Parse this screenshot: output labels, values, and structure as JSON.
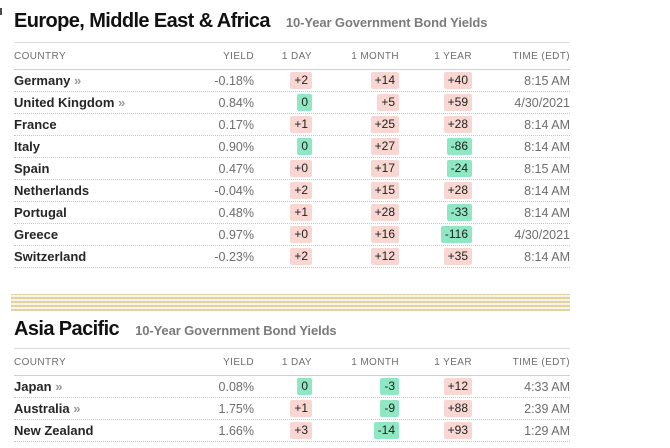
{
  "colors": {
    "badge_red_bg": "#f8d7d3",
    "badge_green_bg": "#8fe7c4",
    "badge_text": "#1f1f1f",
    "band_tan": "#e5d9af"
  },
  "link_glyph": "»",
  "sections": [
    {
      "title": "Europe, Middle East & Africa",
      "subtitle": "10-Year Government Bond Yields",
      "columns": [
        "COUNTRY",
        "YIELD",
        "1 DAY",
        "1 MONTH",
        "1 YEAR",
        "TIME (EDT)"
      ],
      "rows": [
        {
          "country": "Germany",
          "has_link": true,
          "yield": "-0.18%",
          "day": {
            "text": "+2",
            "tone": "red"
          },
          "month": {
            "text": "+14",
            "tone": "red"
          },
          "year": {
            "text": "+40",
            "tone": "red"
          },
          "time": "8:15 AM"
        },
        {
          "country": "United Kingdom",
          "has_link": true,
          "yield": "0.84%",
          "day": {
            "text": "0",
            "tone": "green"
          },
          "month": {
            "text": "+5",
            "tone": "red"
          },
          "year": {
            "text": "+59",
            "tone": "red"
          },
          "time": "4/30/2021"
        },
        {
          "country": "France",
          "has_link": false,
          "yield": "0.17%",
          "day": {
            "text": "+1",
            "tone": "red"
          },
          "month": {
            "text": "+25",
            "tone": "red"
          },
          "year": {
            "text": "+28",
            "tone": "red"
          },
          "time": "8:14 AM"
        },
        {
          "country": "Italy",
          "has_link": false,
          "yield": "0.90%",
          "day": {
            "text": "0",
            "tone": "green"
          },
          "month": {
            "text": "+27",
            "tone": "red"
          },
          "year": {
            "text": "-86",
            "tone": "green"
          },
          "time": "8:14 AM"
        },
        {
          "country": "Spain",
          "has_link": false,
          "yield": "0.47%",
          "day": {
            "text": "+0",
            "tone": "red"
          },
          "month": {
            "text": "+17",
            "tone": "red"
          },
          "year": {
            "text": "-24",
            "tone": "green"
          },
          "time": "8:15 AM"
        },
        {
          "country": "Netherlands",
          "has_link": false,
          "yield": "-0.04%",
          "day": {
            "text": "+2",
            "tone": "red"
          },
          "month": {
            "text": "+15",
            "tone": "red"
          },
          "year": {
            "text": "+28",
            "tone": "red"
          },
          "time": "8:14 AM"
        },
        {
          "country": "Portugal",
          "has_link": false,
          "yield": "0.48%",
          "day": {
            "text": "+1",
            "tone": "red"
          },
          "month": {
            "text": "+28",
            "tone": "red"
          },
          "year": {
            "text": "-33",
            "tone": "green"
          },
          "time": "8:14 AM"
        },
        {
          "country": "Greece",
          "has_link": false,
          "yield": "0.97%",
          "day": {
            "text": "+0",
            "tone": "red"
          },
          "month": {
            "text": "+16",
            "tone": "red"
          },
          "year": {
            "text": "-116",
            "tone": "green"
          },
          "time": "4/30/2021"
        },
        {
          "country": "Switzerland",
          "has_link": false,
          "yield": "-0.23%",
          "day": {
            "text": "+2",
            "tone": "red"
          },
          "month": {
            "text": "+12",
            "tone": "red"
          },
          "year": {
            "text": "+35",
            "tone": "red"
          },
          "time": "8:14 AM"
        }
      ]
    },
    {
      "title": "Asia Pacific",
      "subtitle": "10-Year Government Bond Yields",
      "columns": [
        "COUNTRY",
        "YIELD",
        "1 DAY",
        "1 MONTH",
        "1 YEAR",
        "TIME (EDT)"
      ],
      "rows": [
        {
          "country": "Japan",
          "has_link": true,
          "yield": "0.08%",
          "day": {
            "text": "0",
            "tone": "green"
          },
          "month": {
            "text": "-3",
            "tone": "green"
          },
          "year": {
            "text": "+12",
            "tone": "red"
          },
          "time": "4:33 AM"
        },
        {
          "country": "Australia",
          "has_link": true,
          "yield": "1.75%",
          "day": {
            "text": "+1",
            "tone": "red"
          },
          "month": {
            "text": "-9",
            "tone": "green"
          },
          "year": {
            "text": "+88",
            "tone": "red"
          },
          "time": "2:39 AM"
        },
        {
          "country": "New Zealand",
          "has_link": false,
          "yield": "1.66%",
          "day": {
            "text": "+3",
            "tone": "red"
          },
          "month": {
            "text": "-14",
            "tone": "green"
          },
          "year": {
            "text": "+93",
            "tone": "red"
          },
          "time": "1:29 AM"
        }
      ]
    }
  ]
}
